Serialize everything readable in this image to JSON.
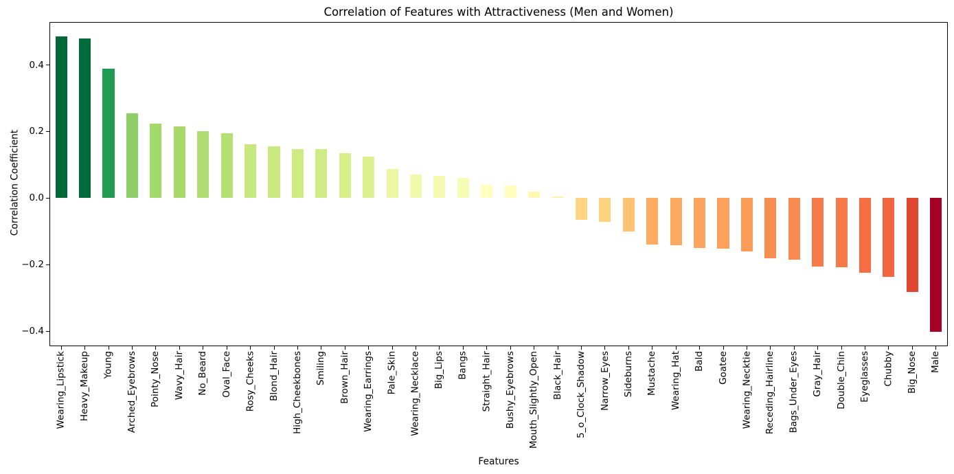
{
  "chart_data": {
    "type": "bar",
    "title": "Correlation of Features with Attractiveness (Men and Women)",
    "xlabel": "Features",
    "ylabel": "Correlation Coefficient",
    "categories": [
      "Wearing_Lipstick",
      "Heavy_Makeup",
      "Young",
      "Arched_Eyebrows",
      "Pointy_Nose",
      "Wavy_Hair",
      "No_Beard",
      "Oval_Face",
      "Rosy_Cheeks",
      "Blond_Hair",
      "High_Cheekbones",
      "Smiling",
      "Brown_Hair",
      "Wearing_Earrings",
      "Pale_Skin",
      "Wearing_Necklace",
      "Big_Lips",
      "Bangs",
      "Straight_Hair",
      "Bushy_Eyebrows",
      "Mouth_Slightly_Open",
      "Black_Hair",
      "5_o_Clock_Shadow",
      "Narrow_Eyes",
      "Sideburns",
      "Mustache",
      "Wearing_Hat",
      "Bald",
      "Goatee",
      "Wearing_Necktie",
      "Receding_Hairline",
      "Bags_Under_Eyes",
      "Gray_Hair",
      "Double_Chin",
      "Eyeglasses",
      "Chubby",
      "Big_Nose",
      "Male"
    ],
    "values": [
      0.485,
      0.479,
      0.388,
      0.255,
      0.223,
      0.215,
      0.201,
      0.195,
      0.162,
      0.156,
      0.148,
      0.147,
      0.134,
      0.124,
      0.087,
      0.072,
      0.067,
      0.06,
      0.041,
      0.039,
      0.019,
      0.004,
      -0.065,
      -0.071,
      -0.1,
      -0.14,
      -0.141,
      -0.149,
      -0.153,
      -0.16,
      -0.181,
      -0.184,
      -0.205,
      -0.208,
      -0.225,
      -0.237,
      -0.282,
      -0.402
    ],
    "ylim": [
      -0.445,
      0.529
    ],
    "yticks": [
      0.4,
      0.2,
      0.0,
      -0.2,
      -0.4
    ],
    "ytick_labels": [
      "0.4",
      "0.2",
      "0.0",
      "−0.2",
      "−0.4"
    ],
    "grid": false,
    "legend": null,
    "bar_width_frac": 0.5,
    "colormap": {
      "name": "RdYlGn",
      "stops": [
        "#a50026",
        "#d73027",
        "#f46d43",
        "#fdae61",
        "#fee08b",
        "#ffffbf",
        "#d9ef8b",
        "#a6d96a",
        "#66bd63",
        "#1a9850",
        "#006837"
      ]
    },
    "colors": {
      "background": "#ffffff",
      "spine": "#000000",
      "text": "#000000"
    }
  }
}
